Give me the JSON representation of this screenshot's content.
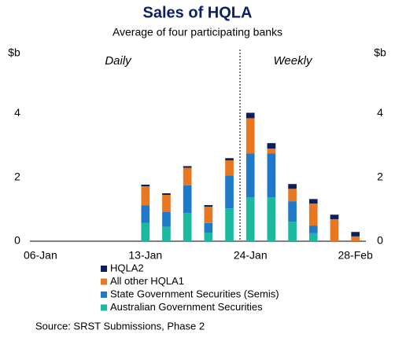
{
  "chart_data": {
    "type": "stacked_bar",
    "title": "Sales of HQLA",
    "subtitle": "Average of four participating banks",
    "y_unit": "$b",
    "annotations": [
      "Daily",
      "Weekly"
    ],
    "source": "Source: SRST Submissions, Phase 2",
    "categories": [
      "06-Jan",
      null,
      null,
      null,
      null,
      "13-Jan",
      null,
      null,
      null,
      null,
      "24-Jan",
      null,
      null,
      null,
      null,
      "28-Feb"
    ],
    "series": [
      {
        "name": "Australian Government Securities",
        "color": "#1ab9a0",
        "values": [
          null,
          null,
          null,
          null,
          null,
          0.57,
          0.45,
          0.88,
          0.27,
          1.03,
          1.37,
          1.37,
          0.61,
          0.25,
          0,
          0
        ]
      },
      {
        "name": "State Government Securities (Semis)",
        "color": "#1f78c8",
        "values": [
          null,
          null,
          null,
          null,
          null,
          0.55,
          0.47,
          0.87,
          0.3,
          1.03,
          1.38,
          1.38,
          0.64,
          0.24,
          0,
          0
        ]
      },
      {
        "name": "All other HQLA1",
        "color": "#e87722",
        "values": [
          null,
          null,
          null,
          null,
          null,
          0.6,
          0.53,
          0.55,
          0.51,
          0.47,
          1.1,
          0.15,
          0.39,
          0.69,
          0.69,
          0.15
        ]
      },
      {
        "name": "HQLA2",
        "color": "#0b1f5c",
        "values": [
          null,
          null,
          null,
          null,
          null,
          0.05,
          0.05,
          0.05,
          0.05,
          0.07,
          0.17,
          0.17,
          0.15,
          0.14,
          0.14,
          0.14
        ]
      }
    ],
    "ylim": [
      0,
      6
    ],
    "yticks": [
      0,
      2,
      4
    ]
  }
}
